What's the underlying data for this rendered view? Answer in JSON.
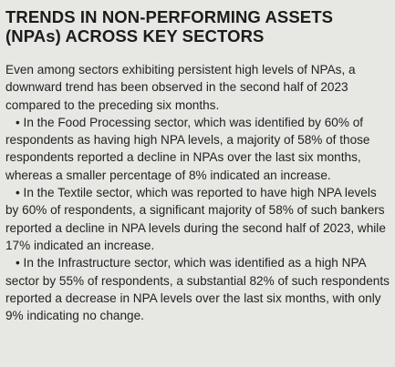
{
  "title": {
    "line1": "TRENDS IN NON-PERFORMING ASSETS",
    "line2": "(NPAs) ACROSS KEY SECTORS"
  },
  "intro": "Even among sectors exhibiting persistent high levels of NPAs, a downward trend has been observed in the second half of 2023 compared to the preceding six months.",
  "bullets": [
    {
      "marker": "•",
      "text": "In the Food Processing sector, which was identified by 60% of respondents as having high NPA levels, a majority of 58% of those respondents reported a decline in NPAs over the last six months, whereas a smaller percentage of 8% indicated an increase."
    },
    {
      "marker": "•",
      "text": "In the Textile sector, which was reported to have high NPA levels by 60% of respondents, a significant majority of 58% of such bankers reported a decline in NPA levels during the second half of 2023, while 17% indicated an increase."
    },
    {
      "marker": "•",
      "text": "In the Infrastructure sector, which was identified as a high NPA sector by 55% of respondents, a substantial 82% of such respondents reported a decrease in NPA levels over the last six months, with only 9% indicating no change."
    }
  ]
}
